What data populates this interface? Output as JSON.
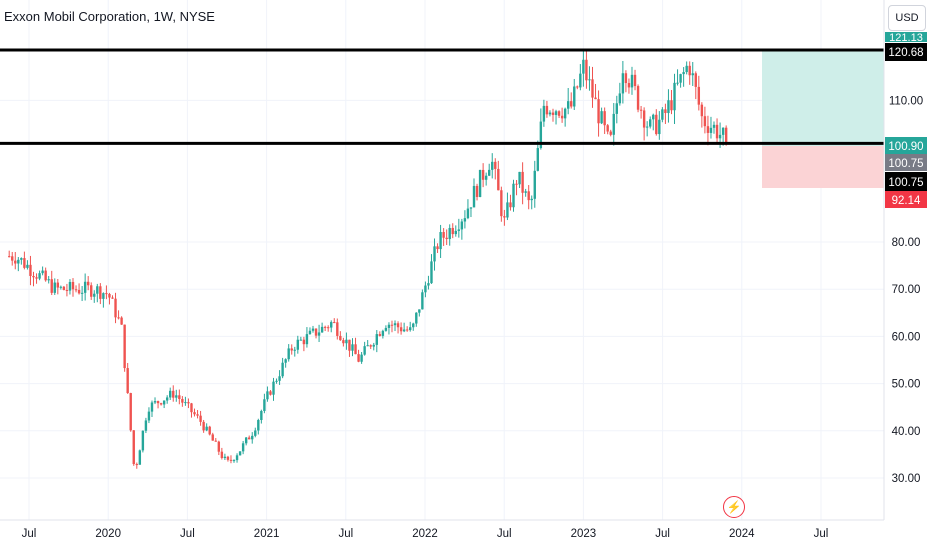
{
  "header": {
    "title": "Exxon Mobil Corporation, 1W, NYSE"
  },
  "currency_button": "USD",
  "colors": {
    "up": "#26a69a",
    "down": "#ef5350",
    "profit_zone": "#cfeee9",
    "loss_zone": "#fbd3d5",
    "line": "#000000"
  },
  "icons": {
    "event": "lightning-bolt-icon"
  },
  "price_labels": {
    "resistance": "120.68",
    "support": "100.90",
    "last": "100.75",
    "last_black": "100.75",
    "stop": "92.14",
    "target_partial": "121.13"
  },
  "chart_data": {
    "type": "candlestick",
    "title": "Exxon Mobil Corporation, 1W, NYSE",
    "x_labels": [
      "Jul",
      "2020",
      "Jul",
      "2021",
      "Jul",
      "2022",
      "Jul",
      "2023",
      "Jul",
      "2024",
      "Jul"
    ],
    "y_ticks": [
      "30.00",
      "40.00",
      "50.00",
      "60.00",
      "70.00",
      "80.00",
      "110.00"
    ],
    "ylim": [
      20,
      126
    ],
    "horizontal_lines": [
      120.68,
      100.9
    ],
    "position": {
      "entry": 100.9,
      "target": 121.13,
      "stop": 92.14
    },
    "path_anchors": [
      [
        "2019-06",
        77
      ],
      [
        "2019-09",
        70
      ],
      [
        "2019-12",
        70
      ],
      [
        "2020-01",
        69
      ],
      [
        "2020-02",
        62
      ],
      [
        "2020-03",
        31
      ],
      [
        "2020-04",
        45
      ],
      [
        "2020-06",
        48
      ],
      [
        "2020-08",
        42
      ],
      [
        "2020-10",
        33
      ],
      [
        "2020-11",
        36
      ],
      [
        "2020-12",
        40
      ],
      [
        "2021-01",
        47
      ],
      [
        "2021-03",
        58
      ],
      [
        "2021-06",
        63
      ],
      [
        "2021-08",
        55
      ],
      [
        "2021-10",
        63
      ],
      [
        "2021-12",
        61
      ],
      [
        "2022-02",
        80
      ],
      [
        "2022-04",
        86
      ],
      [
        "2022-06",
        98
      ],
      [
        "2022-07",
        84
      ],
      [
        "2022-08",
        94
      ],
      [
        "2022-09",
        87
      ],
      [
        "2022-10",
        109
      ],
      [
        "2022-12",
        108
      ],
      [
        "2023-01",
        117
      ],
      [
        "2023-03",
        100
      ],
      [
        "2023-04",
        118
      ],
      [
        "2023-06",
        104
      ],
      [
        "2023-07",
        106
      ],
      [
        "2023-09",
        118
      ],
      [
        "2023-10",
        106
      ],
      [
        "2023-11",
        104
      ],
      [
        "2023-12",
        100.75
      ]
    ]
  }
}
